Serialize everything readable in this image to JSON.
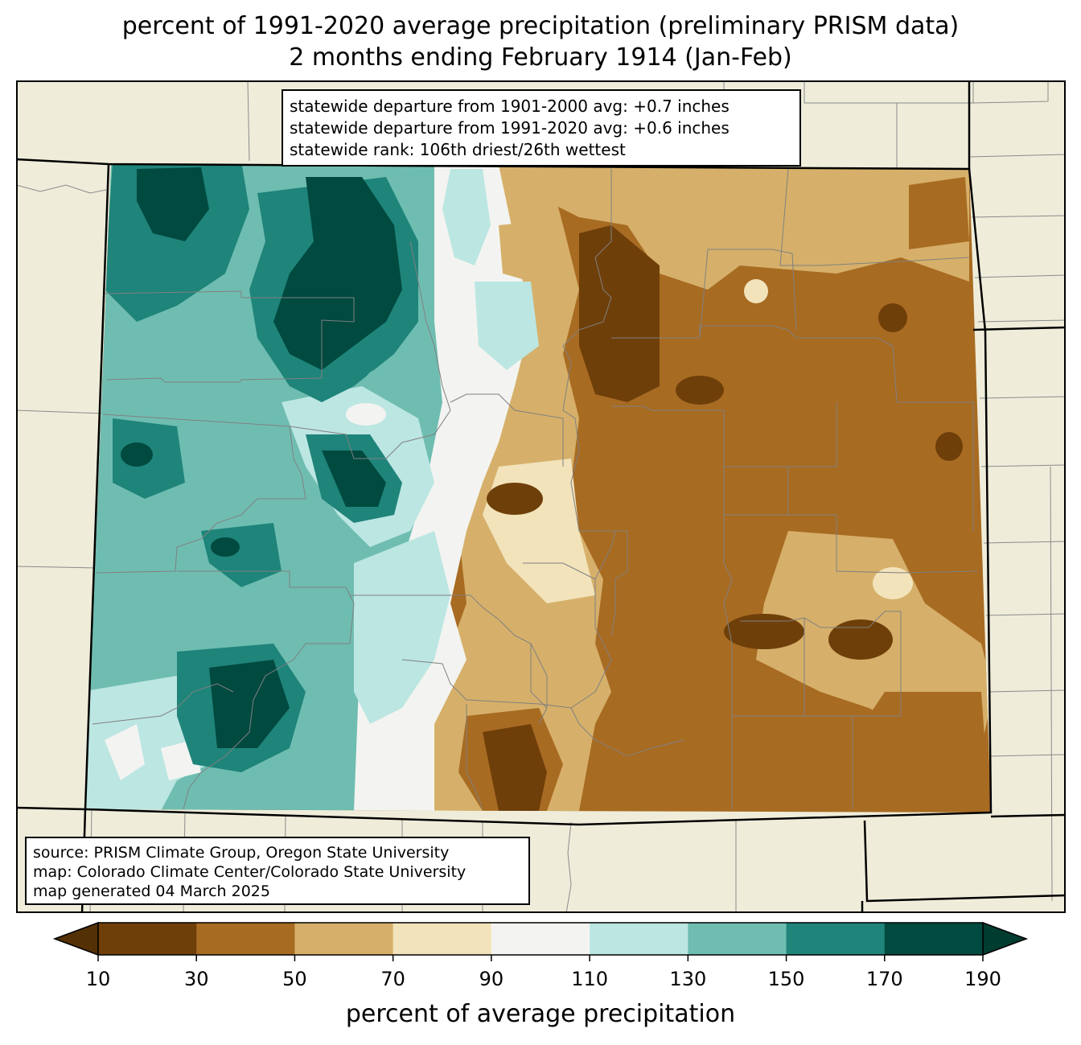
{
  "title": {
    "line1": "percent of 1991-2020 average precipitation (preliminary PRISM data)",
    "line2": "2 months ending February 1914 (Jan-Feb)"
  },
  "stats": {
    "line1": "statewide departure from 1901-2000 avg: +0.7 inches",
    "line2": "statewide departure from 1991-2020 avg: +0.6 inches",
    "line3": "statewide rank: 106th driest/26th wettest"
  },
  "source": {
    "line1": "source: PRISM Climate Group, Oregon State University",
    "line2": "map: Colorado Climate Center/Colorado State University",
    "line3": "map generated 04 March 2025"
  },
  "colorbar": {
    "label": "percent of average precipitation",
    "ticks": [
      "10",
      "30",
      "50",
      "70",
      "90",
      "110",
      "130",
      "150",
      "170",
      "190"
    ],
    "under_color": "#543005",
    "over_color": "#003c30",
    "colors": [
      "#6f3f0a",
      "#a86b22",
      "#d6b06a",
      "#f2e3bb",
      "#f3f4f1",
      "#bce6e2",
      "#6fbdb1",
      "#1f847a",
      "#004a40"
    ]
  },
  "map": {
    "background_color": "#efedda",
    "state": "Colorado"
  }
}
